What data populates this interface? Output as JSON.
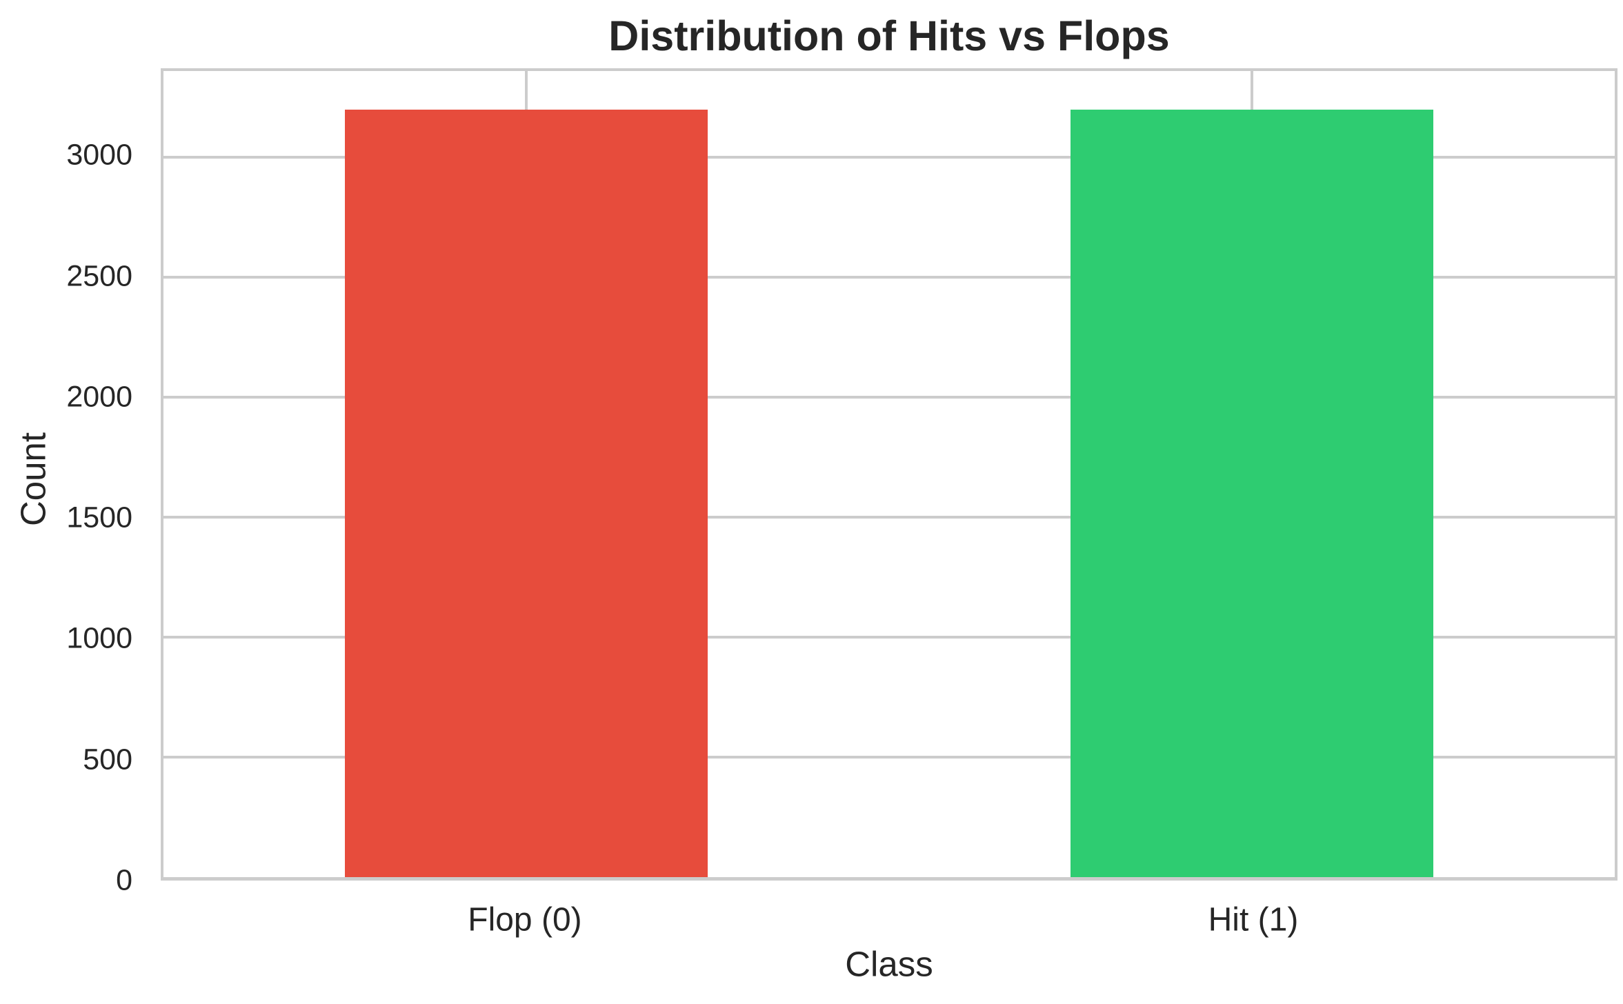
{
  "figure": {
    "background_color": "#ffffff",
    "text_color": "#262626",
    "grid_color": "#cccccc",
    "spine_color": "#cccccc"
  },
  "chart_data": {
    "type": "bar",
    "title": "Distribution of Hits vs Flops",
    "xlabel": "Class",
    "ylabel": "Count",
    "categories": [
      "Flop (0)",
      "Hit (1)"
    ],
    "values": [
      3200,
      3200
    ],
    "bar_colors": [
      "#e74c3c",
      "#2ecc71"
    ],
    "bar_names": [
      "bar-flop-0",
      "bar-hit-1"
    ],
    "ylim": [
      0,
      3360
    ],
    "yticks": [
      0,
      500,
      1000,
      1500,
      2000,
      2500,
      3000
    ],
    "grid": "horizontal-and-vertical-category-lines",
    "grid_below_bars": true,
    "legend": "none",
    "bar_width_fraction_of_slot": 0.5
  }
}
